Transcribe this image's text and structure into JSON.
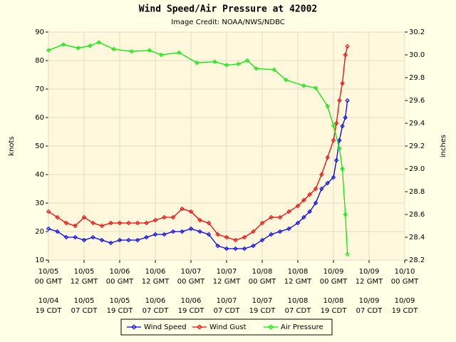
{
  "chart_data": {
    "type": "line",
    "title": "Wind Speed/Air Pressure at 42002",
    "subtitle": "Image Credit: NOAA/NWS/NDBC",
    "y_label": "knots",
    "y2_label": "inches",
    "xlim": [
      0,
      120
    ],
    "xticks": [
      0,
      12,
      24,
      36,
      48,
      60,
      72,
      84,
      96,
      108,
      120
    ],
    "x_tick_labels": [
      [
        "10/05",
        "00 GMT"
      ],
      [
        "10/05",
        "12 GMT"
      ],
      [
        "10/06",
        "00 GMT"
      ],
      [
        "10/06",
        "12 GMT"
      ],
      [
        "10/07",
        "00 GMT"
      ],
      [
        "10/07",
        "12 GMT"
      ],
      [
        "10/08",
        "00 GMT"
      ],
      [
        "10/08",
        "12 GMT"
      ],
      [
        "10/09",
        "00 GMT"
      ],
      [
        "10/09",
        "12 GMT"
      ],
      [
        "10/10",
        "00 GMT"
      ]
    ],
    "x_tick_labels_local": [
      [
        "10/04",
        "19 CDT"
      ],
      [
        "10/05",
        "07 CDT"
      ],
      [
        "10/05",
        "19 CDT"
      ],
      [
        "10/06",
        "07 CDT"
      ],
      [
        "10/06",
        "19 CDT"
      ],
      [
        "10/07",
        "07 CDT"
      ],
      [
        "10/07",
        "19 CDT"
      ],
      [
        "10/08",
        "07 CDT"
      ],
      [
        "10/08",
        "19 CDT"
      ],
      [
        "10/09",
        "07 CDT"
      ],
      [
        "10/09",
        "19 CDT"
      ]
    ],
    "ylim": [
      10,
      90
    ],
    "yticks": [
      10,
      20,
      30,
      40,
      50,
      60,
      70,
      80,
      90
    ],
    "y2lim": [
      28.2,
      30.2
    ],
    "y2ticks": [
      28.2,
      28.4,
      28.6,
      28.8,
      {
        "value": 29,
        "label": "29.0"
      },
      29.2,
      29.4,
      29.6,
      29.8,
      {
        "value": 30,
        "label": "30.0"
      },
      30.2
    ],
    "grid": true,
    "legend": "bottom",
    "series": [
      {
        "name": "Wind Speed",
        "color": "#0000ff",
        "x": [
          0,
          3,
          6,
          9,
          12,
          15,
          18,
          21,
          24,
          27,
          30,
          33,
          36,
          39,
          42,
          45,
          48,
          51,
          54,
          57,
          60,
          63,
          66,
          69,
          72,
          75,
          78,
          81,
          84,
          86,
          88,
          90,
          92,
          94,
          96,
          97,
          98,
          99,
          100,
          100.7
        ],
        "values": [
          21,
          20,
          18,
          18,
          17,
          18,
          17,
          16,
          17,
          17,
          17,
          18,
          19,
          19,
          20,
          20,
          21,
          20,
          19,
          15,
          14,
          14,
          14,
          15,
          17,
          19,
          20,
          21,
          23,
          25,
          27,
          30,
          35,
          37,
          39,
          45,
          52,
          57,
          60,
          66
        ]
      },
      {
        "name": "Wind Gust",
        "color": "#ff0000",
        "x": [
          0,
          3,
          6,
          9,
          12,
          15,
          18,
          21,
          24,
          27,
          30,
          33,
          36,
          39,
          42,
          45,
          48,
          51,
          54,
          57,
          60,
          63,
          66,
          69,
          72,
          75,
          78,
          81,
          84,
          86,
          88,
          90,
          92,
          94,
          96,
          97,
          98,
          99,
          100,
          100.7
        ],
        "values": [
          27,
          25,
          23,
          22,
          25,
          23,
          22,
          23,
          23,
          23,
          23,
          23,
          24,
          25,
          25,
          28,
          27,
          24,
          23,
          19,
          18,
          17,
          18,
          20,
          23,
          25,
          25,
          27,
          29,
          31,
          33,
          35,
          40,
          46,
          52,
          58,
          66,
          72,
          82,
          85
        ]
      },
      {
        "name": "Air Pressure",
        "color": "#00ee00",
        "axis": "y2",
        "x": [
          0,
          5,
          10,
          14,
          17,
          22,
          28,
          34,
          38,
          44,
          50,
          56,
          60,
          64,
          67,
          70,
          76,
          80,
          86,
          90,
          94,
          96,
          98,
          99,
          100,
          100.7
        ],
        "values": [
          30.04,
          30.09,
          30.06,
          30.08,
          30.11,
          30.05,
          30.03,
          30.04,
          30.0,
          30.02,
          29.93,
          29.94,
          29.91,
          29.92,
          29.95,
          29.88,
          29.87,
          29.78,
          29.73,
          29.71,
          29.55,
          29.38,
          29.18,
          29.0,
          28.6,
          28.25
        ]
      }
    ]
  }
}
